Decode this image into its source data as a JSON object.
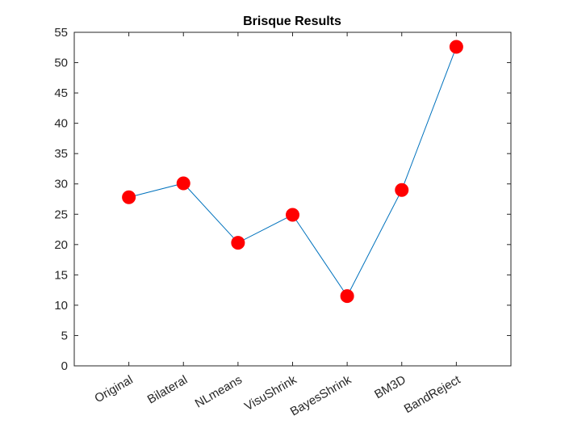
{
  "chart_data": {
    "type": "line",
    "title": "Brisque Results",
    "xlabel": "",
    "ylabel": "",
    "categories": [
      "Original",
      "Bilateral",
      "NLmeans",
      "VisuShrink",
      "BayesShrink",
      "BM3D",
      "BandReject"
    ],
    "series": [
      {
        "values": [
          27.8,
          30.1,
          20.3,
          24.9,
          11.5,
          29.0,
          52.6
        ]
      }
    ],
    "ylim": [
      0,
      55
    ],
    "yticks": [
      0,
      5,
      10,
      15,
      20,
      25,
      30,
      35,
      40,
      45,
      50,
      55
    ],
    "grid": false,
    "colors": {
      "line": "#0072BD",
      "marker": "#ff0000",
      "axes": "#262626"
    }
  }
}
